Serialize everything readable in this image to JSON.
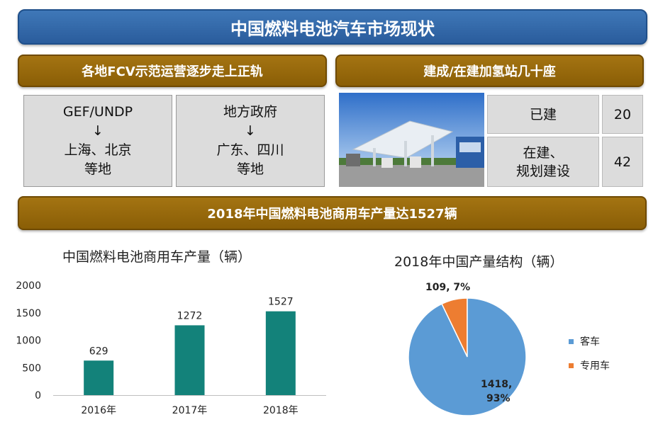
{
  "header": {
    "title": "中国燃料电池汽车市场现状"
  },
  "left_panel": {
    "banner": "各地FCV示范运营逐步走上正轨",
    "boxes": [
      {
        "line1": "GEF/UNDP",
        "arrow": "↓",
        "line2": "上海、北京",
        "line3": "等地"
      },
      {
        "line1": "地方政府",
        "arrow": "↓",
        "line2": "广东、四川",
        "line3": "等地"
      }
    ]
  },
  "right_panel": {
    "banner": "建成/在建加氢站几十座",
    "photo_icon": "hydrogen-station-photo",
    "table": [
      {
        "label": "已建",
        "value": "20"
      },
      {
        "label1": "在建、",
        "label2": "规划建设",
        "value": "42"
      }
    ]
  },
  "middle_banner": "2018年中国燃料电池商用车产量达1527辆",
  "chart_data": [
    {
      "type": "bar",
      "title": "中国燃料电池商用车产量（辆）",
      "categories": [
        "2016年",
        "2017年",
        "2018年"
      ],
      "values": [
        629,
        1272,
        1527
      ],
      "data_labels": [
        "629",
        "1272",
        "1527"
      ],
      "ylim": [
        0,
        2000
      ],
      "yticks": [
        0,
        500,
        1000,
        1500,
        2000
      ],
      "grid": false,
      "bar_color": "#13827a"
    },
    {
      "type": "pie",
      "title": "2018年中国产量结构（辆）",
      "labels": [
        "客车",
        "专用车"
      ],
      "values": [
        1418,
        109
      ],
      "percents": [
        93,
        7
      ],
      "data_labels": [
        [
          "1418,",
          "93%"
        ],
        [
          "109, 7%"
        ]
      ],
      "colors": [
        "#5b9bd5",
        "#ed7d31"
      ],
      "legend": "right"
    }
  ]
}
